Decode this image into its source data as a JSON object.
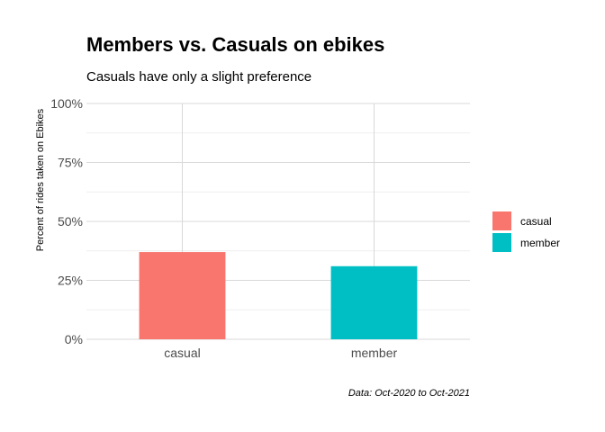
{
  "chart_data": {
    "type": "bar",
    "title": "Members vs. Casuals on ebikes",
    "subtitle": "Casuals have only a slight preference",
    "xlabel": "",
    "ylabel": "Percent of rides taken on Ebikes",
    "caption": "Data: Oct-2020 to Oct-2021",
    "categories": [
      "casual",
      "member"
    ],
    "values": [
      0.37,
      0.31
    ],
    "colors": [
      "#F8766D",
      "#00BFC4"
    ],
    "ylim": [
      0,
      1
    ],
    "yticks": [
      0,
      0.25,
      0.5,
      0.75,
      1
    ],
    "ytick_labels": [
      "0%",
      "25%",
      "50%",
      "75%",
      "100%"
    ],
    "grid": true,
    "legend": {
      "position": "right",
      "entries": [
        {
          "label": "casual",
          "color": "#F8766D"
        },
        {
          "label": "member",
          "color": "#00BFC4"
        }
      ]
    }
  }
}
